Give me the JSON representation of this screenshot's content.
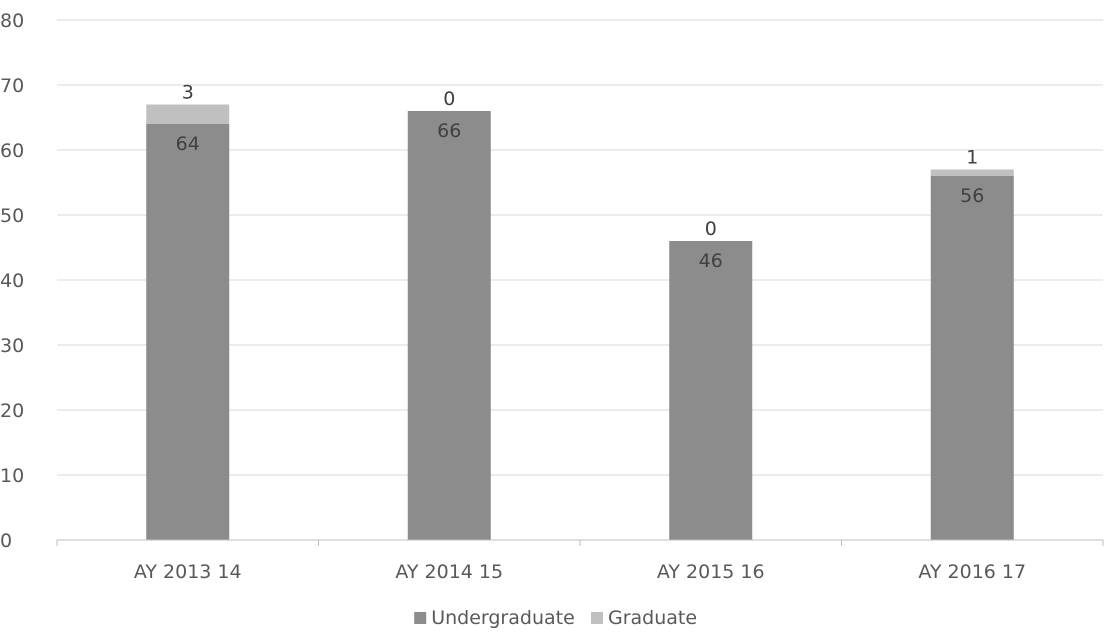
{
  "chart_data": {
    "type": "bar",
    "stacked": true,
    "title": "",
    "xlabel": "",
    "ylabel": "",
    "categories": [
      "AY 2013 14",
      "AY 2014 15",
      "AY 2015 16",
      "AY 2016 17"
    ],
    "series": [
      {
        "name": "Undergraduate",
        "values": [
          64,
          66,
          46,
          56
        ],
        "color": "#8c8c8c"
      },
      {
        "name": "Graduate",
        "values": [
          3,
          0,
          0,
          1
        ],
        "color": "#c0c0c0"
      }
    ],
    "ylim": [
      0,
      80
    ],
    "yticks": [
      "0",
      "10",
      "20",
      "30",
      "40",
      "50",
      "60",
      "70",
      "80"
    ],
    "grid": true,
    "legend": "bottom"
  }
}
